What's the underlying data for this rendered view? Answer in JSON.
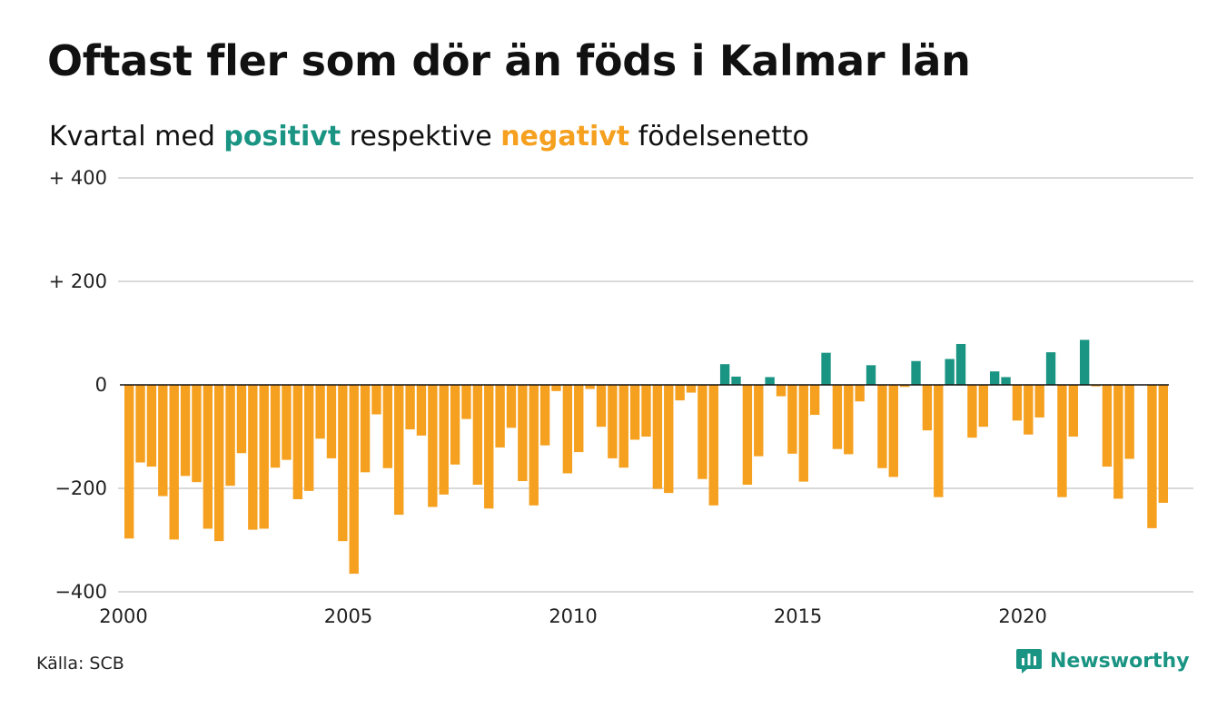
{
  "title": "Oftast fler som dör än föds i Kalmar län",
  "subtitle": {
    "prefix": "Kvartal med ",
    "positive_word": "positivt",
    "middle": " respektive ",
    "negative_word": "negativt",
    "suffix": " födelsenetto"
  },
  "source": "Källa: SCB",
  "brand": {
    "name": "Newsworthy",
    "icon": "newsworthy-logo-icon"
  },
  "colors": {
    "positive": "#1a9483",
    "negative": "#f5a01f",
    "grid": "#d9d9d9",
    "zero_line": "#111111"
  },
  "chart_data": {
    "type": "bar",
    "title": "Oftast fler som dör än föds i Kalmar län",
    "xlabel": "",
    "ylabel": "",
    "ylim": [
      -400,
      400
    ],
    "yticks": [
      {
        "value": 400,
        "label": "+ 400"
      },
      {
        "value": 200,
        "label": "+ 200"
      },
      {
        "value": 0,
        "label": "0"
      },
      {
        "value": -200,
        "label": "−200"
      },
      {
        "value": -400,
        "label": "−400"
      }
    ],
    "x_ticks": [
      "2000",
      "2005",
      "2010",
      "2015",
      "2020"
    ],
    "start_year": 2000,
    "periods_per_year": 4,
    "grid": true,
    "values": [
      -297,
      -150,
      -158,
      -215,
      -299,
      -176,
      -188,
      -278,
      -302,
      -195,
      -132,
      -280,
      -278,
      -160,
      -145,
      -221,
      -205,
      -104,
      -142,
      -302,
      -365,
      -169,
      -57,
      -161,
      -251,
      -86,
      -98,
      -236,
      -212,
      -154,
      -66,
      -193,
      -239,
      -121,
      -83,
      -186,
      -233,
      -117,
      -12,
      -171,
      -130,
      -8,
      -81,
      -142,
      -160,
      -106,
      -100,
      -201,
      -209,
      -30,
      -15,
      -182,
      -233,
      40,
      16,
      -193,
      -138,
      15,
      -22,
      -133,
      -187,
      -58,
      62,
      -124,
      -134,
      -32,
      38,
      -161,
      -178,
      -4,
      46,
      -88,
      -217,
      50,
      79,
      -102,
      -81,
      26,
      15,
      -69,
      -96,
      -63,
      63,
      -217,
      -100,
      87,
      -3,
      -158,
      -220,
      -143,
      0,
      -277,
      -228
    ]
  }
}
